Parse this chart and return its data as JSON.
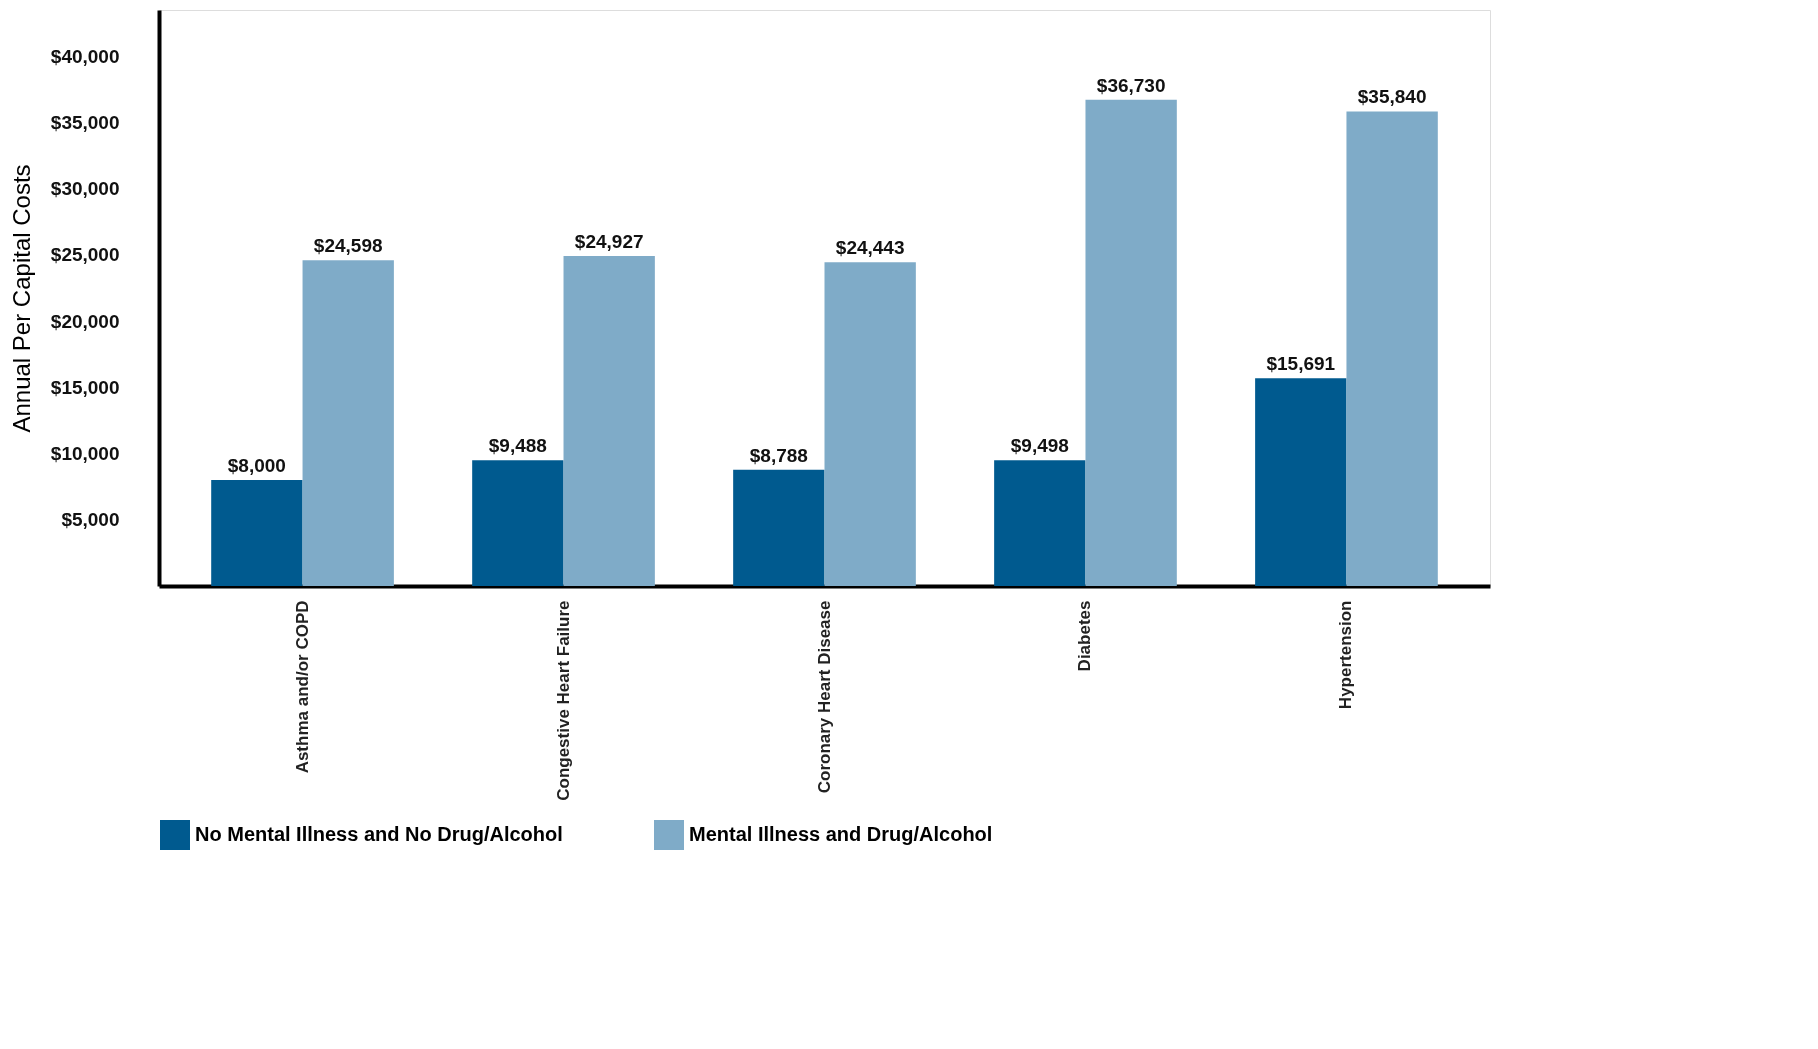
{
  "chart_data": {
    "type": "bar",
    "ylabel": "Annual Per Capital Costs",
    "categories": [
      "Asthma and/or COPD",
      "Congestive Heart Failure",
      "Coronary Heart Disease",
      "Diabetes",
      "Hypertension"
    ],
    "series": [
      {
        "name": "No Mental Illness and No Drug/Alcohol",
        "color": "#005a8f",
        "values": [
          8000,
          9488,
          8788,
          9498,
          15691
        ],
        "value_labels": [
          "$8,000",
          "$9,488",
          "$8,788",
          "$9,498",
          "$15,691"
        ]
      },
      {
        "name": "Mental Illness and Drug/Alcohol",
        "color": "#7fabc8",
        "values": [
          24598,
          24927,
          24443,
          36730,
          35840
        ],
        "value_labels": [
          "$24,598",
          "$24,927",
          "$24,443",
          "$36,730",
          "$35,840"
        ]
      }
    ],
    "ylim": [
      0,
      43500
    ],
    "yticks": [
      {
        "value": 5000,
        "label": "$5,000"
      },
      {
        "value": 10000,
        "label": "$10,000"
      },
      {
        "value": 15000,
        "label": "$15,000"
      },
      {
        "value": 20000,
        "label": "$20,000"
      },
      {
        "value": 25000,
        "label": "$25,000"
      },
      {
        "value": 30000,
        "label": "$30,000"
      },
      {
        "value": 35000,
        "label": "$35,000"
      },
      {
        "value": 40000,
        "label": "$40,000"
      }
    ],
    "grid": false,
    "legend": "bottom"
  }
}
